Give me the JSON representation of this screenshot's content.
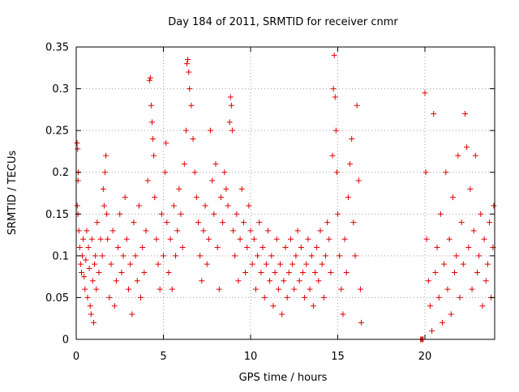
{
  "chart_data": {
    "type": "scatter",
    "title": "Day 184 of 2011, SRMTID for receiver cnmr",
    "xlabel": "GPS time / hours",
    "ylabel": "SRMTID / TECUs",
    "xlim": [
      0,
      24
    ],
    "ylim": [
      0,
      0.35
    ],
    "x_ticks": [
      0,
      5,
      10,
      15,
      20
    ],
    "x_tick_labels": [
      "0",
      "5",
      "10",
      "15",
      "20"
    ],
    "y_ticks": [
      0,
      0.05,
      0.1,
      0.15,
      0.2,
      0.25,
      0.3,
      0.35
    ],
    "y_tick_labels": [
      "0",
      "0.05",
      "0.1",
      "0.15",
      "0.2",
      "0.25",
      "0.3",
      "0.35"
    ],
    "grid": true,
    "grid_style": "dotted",
    "marker": "+",
    "point_count_estimate": 2000,
    "data_gap_hours": [
      16.6,
      19.7
    ],
    "series": [
      {
        "name": "SRMTID",
        "color": "#e00000",
        "points": [
          [
            0.05,
            0.235
          ],
          [
            0.08,
            0.228
          ],
          [
            0.1,
            0.19
          ],
          [
            0.12,
            0.2
          ],
          [
            0.06,
            0.16
          ],
          [
            0.1,
            0.15
          ],
          [
            0.15,
            0.13
          ],
          [
            0.2,
            0.11
          ],
          [
            0.25,
            0.09
          ],
          [
            0.3,
            0.08
          ],
          [
            0.35,
            0.1
          ],
          [
            0.4,
            0.12
          ],
          [
            0.45,
            0.075
          ],
          [
            0.5,
            0.06
          ],
          [
            0.55,
            0.095
          ],
          [
            0.6,
            0.13
          ],
          [
            0.65,
            0.05
          ],
          [
            0.7,
            0.11
          ],
          [
            0.75,
            0.085
          ],
          [
            0.8,
            0.04
          ],
          [
            0.85,
            0.03
          ],
          [
            0.9,
            0.12
          ],
          [
            0.95,
            0.07
          ],
          [
            1.0,
            0.02
          ],
          [
            1.05,
            0.09
          ],
          [
            1.1,
            0.1
          ],
          [
            1.15,
            0.06
          ],
          [
            1.2,
            0.14
          ],
          [
            1.3,
            0.08
          ],
          [
            1.4,
            0.12
          ],
          [
            1.5,
            0.1
          ],
          [
            1.55,
            0.18
          ],
          [
            1.6,
            0.16
          ],
          [
            1.65,
            0.2
          ],
          [
            1.7,
            0.22
          ],
          [
            1.75,
            0.15
          ],
          [
            1.8,
            0.12
          ],
          [
            1.9,
            0.05
          ],
          [
            2.0,
            0.09
          ],
          [
            2.1,
            0.13
          ],
          [
            2.2,
            0.04
          ],
          [
            2.3,
            0.07
          ],
          [
            2.4,
            0.11
          ],
          [
            2.5,
            0.15
          ],
          [
            2.6,
            0.08
          ],
          [
            2.7,
            0.1
          ],
          [
            2.8,
            0.17
          ],
          [
            2.9,
            0.12
          ],
          [
            3.0,
            0.06
          ],
          [
            3.1,
            0.09
          ],
          [
            3.2,
            0.03
          ],
          [
            3.3,
            0.14
          ],
          [
            3.4,
            0.1
          ],
          [
            3.5,
            0.07
          ],
          [
            3.6,
            0.16
          ],
          [
            3.7,
            0.05
          ],
          [
            3.8,
            0.11
          ],
          [
            3.9,
            0.08
          ],
          [
            4.0,
            0.13
          ],
          [
            4.1,
            0.19
          ],
          [
            4.2,
            0.31
          ],
          [
            4.25,
            0.313
          ],
          [
            4.3,
            0.28
          ],
          [
            4.35,
            0.26
          ],
          [
            4.4,
            0.24
          ],
          [
            4.45,
            0.22
          ],
          [
            4.5,
            0.17
          ],
          [
            4.6,
            0.12
          ],
          [
            4.7,
            0.09
          ],
          [
            4.8,
            0.06
          ],
          [
            4.9,
            0.15
          ],
          [
            5.0,
            0.1
          ],
          [
            5.1,
            0.2
          ],
          [
            5.15,
            0.235
          ],
          [
            5.2,
            0.14
          ],
          [
            5.3,
            0.08
          ],
          [
            5.4,
            0.12
          ],
          [
            5.5,
            0.06
          ],
          [
            5.6,
            0.16
          ],
          [
            5.7,
            0.1
          ],
          [
            5.8,
            0.13
          ],
          [
            5.9,
            0.18
          ],
          [
            6.0,
            0.15
          ],
          [
            6.1,
            0.11
          ],
          [
            6.2,
            0.21
          ],
          [
            6.3,
            0.25
          ],
          [
            6.35,
            0.33
          ],
          [
            6.4,
            0.335
          ],
          [
            6.45,
            0.32
          ],
          [
            6.5,
            0.3
          ],
          [
            6.6,
            0.28
          ],
          [
            6.7,
            0.24
          ],
          [
            6.8,
            0.2
          ],
          [
            6.9,
            0.17
          ],
          [
            7.0,
            0.14
          ],
          [
            7.1,
            0.1
          ],
          [
            7.2,
            0.07
          ],
          [
            7.3,
            0.13
          ],
          [
            7.4,
            0.16
          ],
          [
            7.5,
            0.09
          ],
          [
            7.6,
            0.12
          ],
          [
            7.7,
            0.25
          ],
          [
            7.8,
            0.19
          ],
          [
            7.9,
            0.15
          ],
          [
            8.0,
            0.21
          ],
          [
            8.1,
            0.11
          ],
          [
            8.2,
            0.06
          ],
          [
            8.3,
            0.17
          ],
          [
            8.4,
            0.14
          ],
          [
            8.5,
            0.2
          ],
          [
            8.6,
            0.18
          ],
          [
            8.7,
            0.16
          ],
          [
            8.8,
            0.26
          ],
          [
            8.85,
            0.29
          ],
          [
            8.9,
            0.28
          ],
          [
            8.95,
            0.25
          ],
          [
            9.0,
            0.13
          ],
          [
            9.1,
            0.1
          ],
          [
            9.2,
            0.15
          ],
          [
            9.3,
            0.07
          ],
          [
            9.4,
            0.12
          ],
          [
            9.5,
            0.18
          ],
          [
            9.6,
            0.14
          ],
          [
            9.7,
            0.08
          ],
          [
            9.8,
            0.11
          ],
          [
            9.9,
            0.16
          ],
          [
            10.0,
            0.13
          ],
          [
            10.1,
            0.09
          ],
          [
            10.2,
            0.12
          ],
          [
            10.3,
            0.06
          ],
          [
            10.4,
            0.1
          ],
          [
            10.5,
            0.14
          ],
          [
            10.6,
            0.08
          ],
          [
            10.7,
            0.11
          ],
          [
            10.8,
            0.05
          ],
          [
            10.9,
            0.09
          ],
          [
            11.0,
            0.13
          ],
          [
            11.1,
            0.07
          ],
          [
            11.2,
            0.1
          ],
          [
            11.3,
            0.04
          ],
          [
            11.4,
            0.08
          ],
          [
            11.5,
            0.12
          ],
          [
            11.6,
            0.06
          ],
          [
            11.7,
            0.09
          ],
          [
            11.8,
            0.03
          ],
          [
            11.9,
            0.07
          ],
          [
            12.0,
            0.11
          ],
          [
            12.1,
            0.05
          ],
          [
            12.2,
            0.08
          ],
          [
            12.3,
            0.12
          ],
          [
            12.4,
            0.09
          ],
          [
            12.5,
            0.06
          ],
          [
            12.6,
            0.1
          ],
          [
            12.7,
            0.13
          ],
          [
            12.8,
            0.07
          ],
          [
            12.9,
            0.11
          ],
          [
            13.0,
            0.08
          ],
          [
            13.1,
            0.05
          ],
          [
            13.2,
            0.09
          ],
          [
            13.3,
            0.12
          ],
          [
            13.4,
            0.06
          ],
          [
            13.5,
            0.1
          ],
          [
            13.6,
            0.04
          ],
          [
            13.7,
            0.08
          ],
          [
            13.8,
            0.11
          ],
          [
            13.9,
            0.07
          ],
          [
            14.0,
            0.13
          ],
          [
            14.1,
            0.09
          ],
          [
            14.2,
            0.05
          ],
          [
            14.3,
            0.1
          ],
          [
            14.4,
            0.14
          ],
          [
            14.5,
            0.12
          ],
          [
            14.6,
            0.08
          ],
          [
            14.7,
            0.22
          ],
          [
            14.75,
            0.3
          ],
          [
            14.8,
            0.34
          ],
          [
            14.85,
            0.29
          ],
          [
            14.9,
            0.25
          ],
          [
            14.95,
            0.2
          ],
          [
            15.0,
            0.15
          ],
          [
            15.1,
            0.1
          ],
          [
            15.2,
            0.06
          ],
          [
            15.3,
            0.03
          ],
          [
            15.4,
            0.12
          ],
          [
            15.5,
            0.08
          ],
          [
            15.6,
            0.17
          ],
          [
            15.7,
            0.21
          ],
          [
            15.8,
            0.24
          ],
          [
            15.9,
            0.14
          ],
          [
            16.0,
            0.1
          ],
          [
            16.1,
            0.28
          ],
          [
            16.2,
            0.19
          ],
          [
            16.3,
            0.06
          ],
          [
            16.35,
            0.02
          ],
          [
            19.75,
            0.0
          ],
          [
            19.8,
            0.0
          ],
          [
            19.85,
            0.0
          ],
          [
            19.9,
            0.0
          ],
          [
            20.0,
            0.295
          ],
          [
            20.05,
            0.2
          ],
          [
            20.1,
            0.12
          ],
          [
            20.2,
            0.07
          ],
          [
            20.3,
            0.04
          ],
          [
            20.4,
            0.01
          ],
          [
            20.5,
            0.27
          ],
          [
            20.6,
            0.08
          ],
          [
            20.7,
            0.11
          ],
          [
            20.8,
            0.05
          ],
          [
            20.9,
            0.15
          ],
          [
            21.0,
            0.02
          ],
          [
            21.1,
            0.09
          ],
          [
            21.2,
            0.2
          ],
          [
            21.3,
            0.06
          ],
          [
            21.4,
            0.12
          ],
          [
            21.5,
            0.03
          ],
          [
            21.6,
            0.17
          ],
          [
            21.7,
            0.08
          ],
          [
            21.8,
            0.1
          ],
          [
            21.9,
            0.22
          ],
          [
            22.0,
            0.05
          ],
          [
            22.1,
            0.14
          ],
          [
            22.2,
            0.09
          ],
          [
            22.3,
            0.27
          ],
          [
            22.4,
            0.23
          ],
          [
            22.5,
            0.11
          ],
          [
            22.6,
            0.18
          ],
          [
            22.7,
            0.06
          ],
          [
            22.8,
            0.13
          ],
          [
            22.9,
            0.22
          ],
          [
            23.0,
            0.08
          ],
          [
            23.1,
            0.1
          ],
          [
            23.2,
            0.15
          ],
          [
            23.3,
            0.04
          ],
          [
            23.4,
            0.12
          ],
          [
            23.5,
            0.07
          ],
          [
            23.6,
            0.09
          ],
          [
            23.7,
            0.14
          ],
          [
            23.8,
            0.05
          ],
          [
            23.9,
            0.11
          ],
          [
            23.95,
            0.16
          ]
        ]
      }
    ]
  }
}
